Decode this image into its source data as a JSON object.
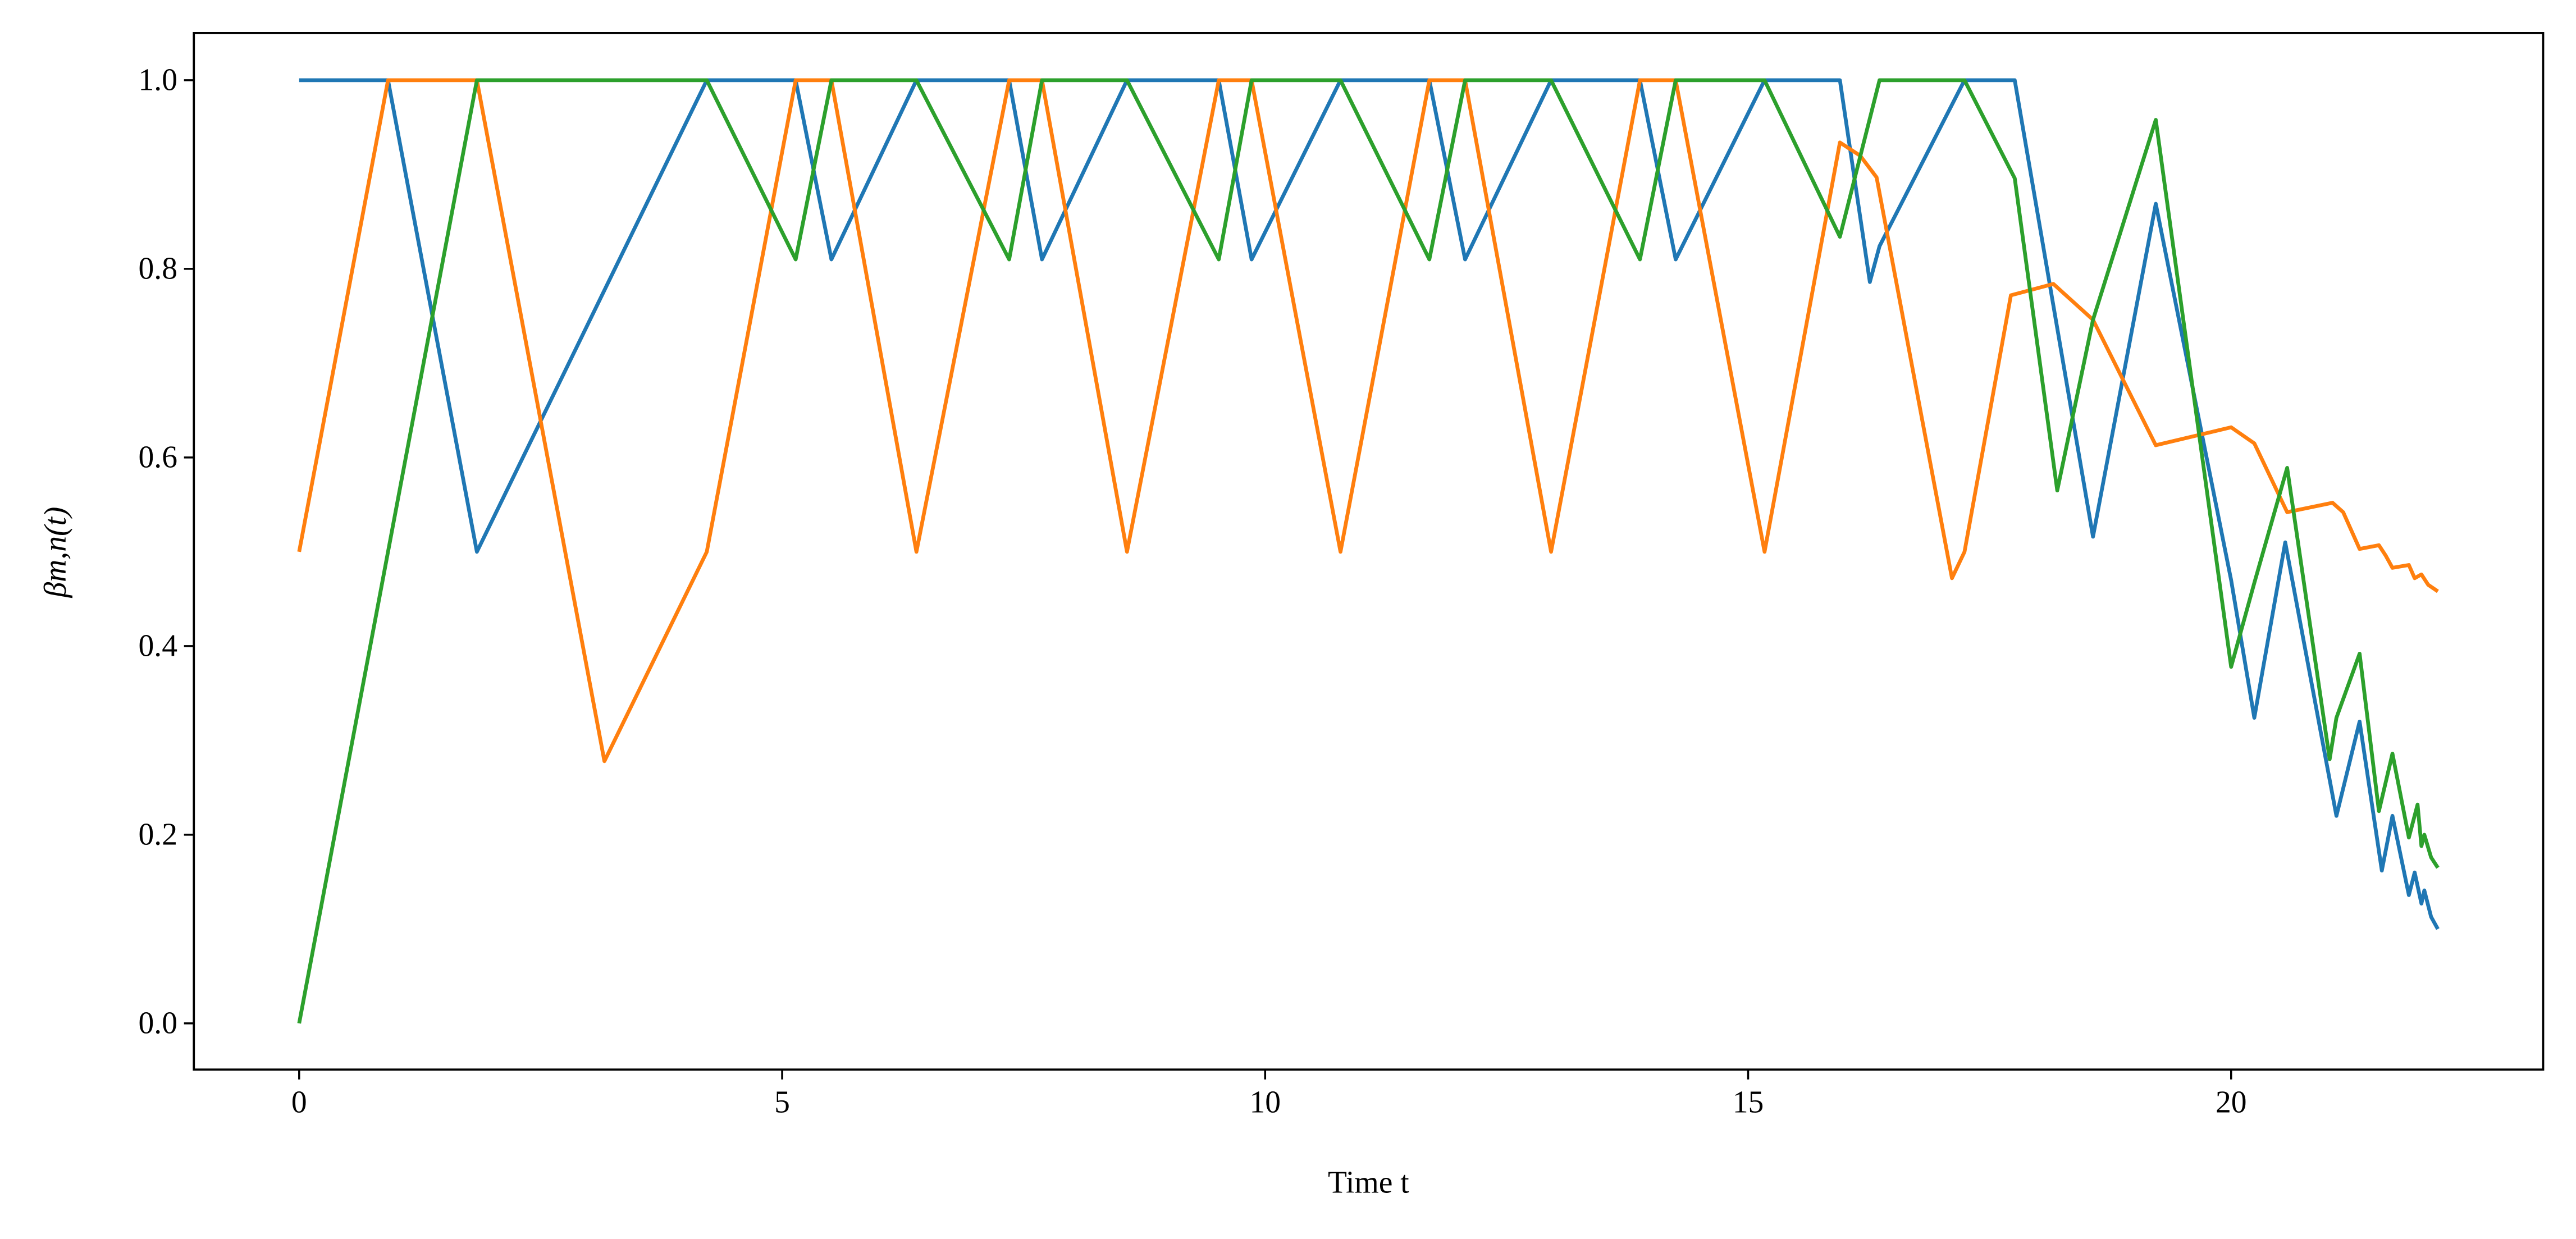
{
  "chart_data": {
    "type": "line",
    "x_label": "Time t",
    "y_label": "βm,n(t)",
    "xlim": [
      -1.09,
      23.23
    ],
    "xticks": [
      0,
      5,
      10,
      15,
      20
    ],
    "ylim": [
      -0.049,
      1.05
    ],
    "yticks": [
      {
        "value": 0,
        "label": "0.0"
      },
      0.2,
      0.4,
      0.6,
      0.8,
      {
        "value": 1,
        "label": "1.0"
      }
    ],
    "grid": false,
    "series": [
      {
        "color": "#1f77b4",
        "x": [
          0,
          0.92,
          1.84,
          4.22,
          5.14,
          5.51,
          6.39,
          7.35,
          7.69,
          8.57,
          9.52,
          9.86,
          10.78,
          11.7,
          12.07,
          12.96,
          13.88,
          14.25,
          15.17,
          15.95,
          16.26,
          16.36,
          17.24,
          17.76,
          18.57,
          19.22,
          20.0,
          20.24,
          20.56,
          21.09,
          21.33,
          21.56,
          21.67,
          21.84,
          21.9,
          21.97,
          22.0,
          22.07,
          22.14
        ],
        "values": [
          1,
          1,
          0.5,
          1,
          1,
          0.81,
          1,
          1,
          0.81,
          1,
          1,
          0.81,
          1,
          1,
          0.81,
          1,
          1,
          0.81,
          1,
          1,
          0.786,
          0.824,
          1,
          1,
          0.516,
          0.869,
          0.47,
          0.324,
          0.51,
          0.22,
          0.32,
          0.162,
          0.22,
          0.136,
          0.16,
          0.127,
          0.141,
          0.113,
          0.1
        ]
      },
      {
        "color": "#ff7f0e",
        "x": [
          0,
          0.92,
          1.84,
          3.16,
          4.22,
          5.14,
          5.51,
          6.39,
          7.35,
          7.69,
          8.57,
          9.52,
          9.86,
          10.78,
          11.7,
          12.07,
          12.96,
          13.88,
          14.25,
          15.17,
          15.95,
          16.16,
          16.33,
          17.11,
          17.24,
          17.72,
          18.16,
          18.57,
          19.22,
          20.0,
          20.24,
          20.58,
          21.05,
          21.16,
          21.33,
          21.53,
          21.6,
          21.67,
          21.84,
          21.9,
          21.97,
          22.04,
          22.14
        ],
        "values": [
          0.5,
          1,
          1,
          0.278,
          0.5,
          1,
          1,
          0.5,
          1,
          1,
          0.5,
          1,
          1,
          0.5,
          1,
          1,
          0.5,
          1,
          1,
          0.5,
          0.934,
          0.92,
          0.897,
          0.472,
          0.5,
          0.772,
          0.784,
          0.746,
          0.613,
          0.632,
          0.615,
          0.542,
          0.552,
          0.542,
          0.503,
          0.507,
          0.496,
          0.483,
          0.486,
          0.472,
          0.476,
          0.465,
          0.458
        ]
      },
      {
        "color": "#2ca02c",
        "x": [
          0,
          1.84,
          4.22,
          5.14,
          5.51,
          6.39,
          7.35,
          7.69,
          8.57,
          9.52,
          9.86,
          10.78,
          11.7,
          12.07,
          12.96,
          13.88,
          14.25,
          15.17,
          15.95,
          16.36,
          17.24,
          17.76,
          18.2,
          18.57,
          19.22,
          20.0,
          20.24,
          20.58,
          21.02,
          21.09,
          21.33,
          21.53,
          21.67,
          21.84,
          21.93,
          21.97,
          22.0,
          22.07,
          22.14
        ],
        "values": [
          0,
          1,
          1,
          0.81,
          1,
          1,
          0.81,
          1,
          1,
          0.81,
          1,
          1,
          0.81,
          1,
          1,
          0.81,
          1,
          1,
          0.834,
          1,
          1,
          0.896,
          0.565,
          0.746,
          0.958,
          0.378,
          0.467,
          0.589,
          0.28,
          0.324,
          0.392,
          0.225,
          0.286,
          0.197,
          0.232,
          0.188,
          0.2,
          0.176,
          0.165
        ]
      }
    ]
  }
}
